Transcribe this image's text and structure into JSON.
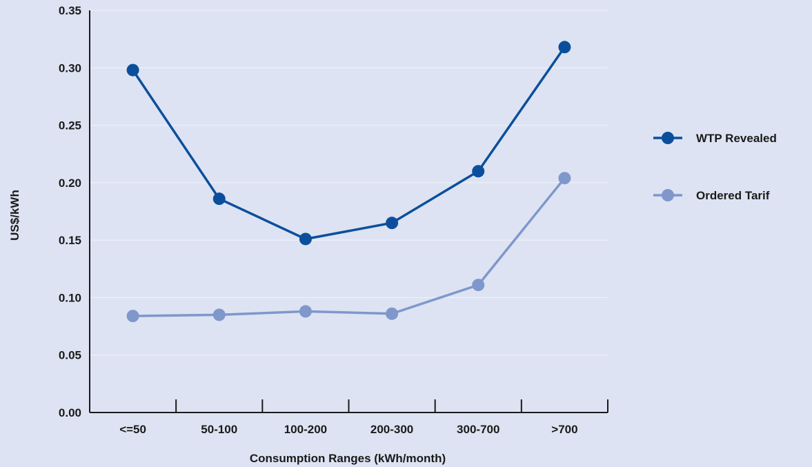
{
  "chart_data": {
    "type": "line",
    "categories": [
      "<=50",
      "50-100",
      "100-200",
      "200-300",
      "300-700",
      ">700"
    ],
    "series": [
      {
        "name": "WTP Revealed",
        "values": [
          0.298,
          0.186,
          0.151,
          0.165,
          0.21,
          0.318
        ],
        "color": "#0b4f9c"
      },
      {
        "name": "Ordered Tarif",
        "values": [
          0.084,
          0.085,
          0.088,
          0.086,
          0.111,
          0.204
        ],
        "color": "#7f97cb"
      }
    ],
    "xlabel": "Consumption Ranges (kWh/month)",
    "ylabel": "US$/kWh",
    "ylim": [
      0,
      0.35
    ],
    "yticks": [
      "0.00",
      "0.05",
      "0.10",
      "0.15",
      "0.20",
      "0.25",
      "0.30",
      "0.35"
    ],
    "grid": true,
    "legend_position": "right",
    "background_color": "#dde3f2",
    "grid_color": "#eef1f9",
    "axis_color": "#1a1a1a"
  }
}
